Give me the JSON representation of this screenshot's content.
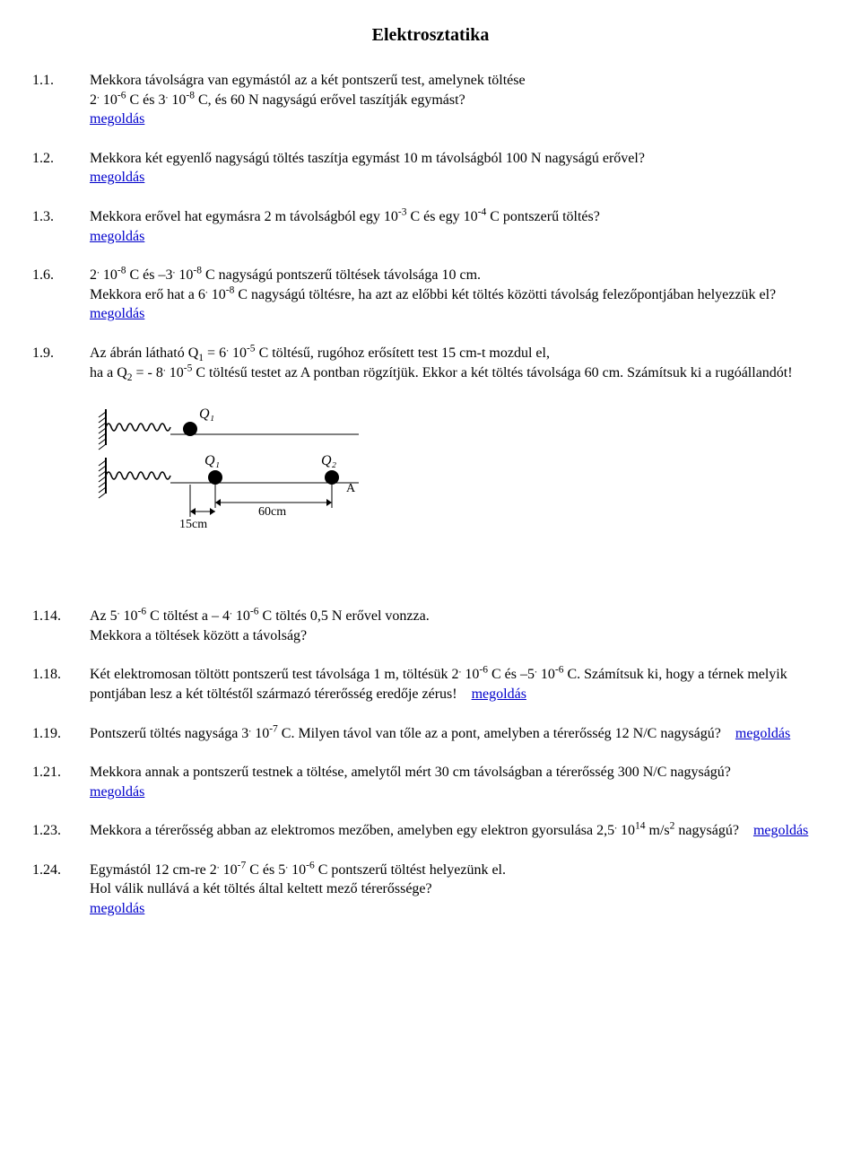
{
  "title": "Elektrosztatika",
  "solution_label": "megoldás",
  "link_color": "#0000cc",
  "items": [
    {
      "num": "1.1.",
      "text_html": "Mekkora távolságra van egymástól az a két pontszerű test, amelynek töltése<br>2<sup>.</sup> 10<sup>-6</sup>  C és 3<sup>.</sup> 10<sup>-8</sup> C, és 60 N nagyságú erővel taszítják egymást?",
      "solution_after": true
    },
    {
      "num": "1.2.",
      "text_html": "Mekkora két egyenlő nagyságú töltés taszítja egymást 10 m távolságból 100 N nagyságú erővel?",
      "solution_after": true
    },
    {
      "num": "1.3.",
      "text_html": "Mekkora erővel hat egymásra 2 m távolságból egy 10<sup>-3</sup> C és egy 10<sup>-4</sup> C pontszerű töltés?",
      "solution_after": true
    },
    {
      "num": "1.6.",
      "text_html": "2<sup>.</sup> 10<sup>-8</sup> C és –3<sup>.</sup> 10<sup>-8</sup> C nagyságú pontszerű töltések távolsága 10 cm.<br>Mekkora erő hat a 6<sup>.</sup> 10<sup>-8</sup> C nagyságú töltésre, ha azt az előbbi két töltés közötti távolság felezőpontjában helyezzük el?",
      "solution_after": true
    },
    {
      "num": "1.9.",
      "text_html": "Az ábrán látható Q<sub>1</sub> = 6<sup>.</sup> 10<sup>-5</sup> C töltésű, rugóhoz erősített test 15 cm-t mozdul el,<br>ha a Q<sub>2</sub> = - 8<sup>.</sup> 10<sup>-5</sup> C töltésű testet az A pontban rögzítjük. Ekkor a két töltés távolsága 60 cm. Számítsuk ki a rugóállandót!",
      "has_figure": true
    },
    {
      "num": "1.14.",
      "text_html": "Az 5<sup>.</sup> 10<sup>-6</sup> C töltést a – 4<sup>.</sup> 10<sup>-6</sup> C töltés 0,5 N erővel vonzza.<br>Mekkora a töltések között a távolság?"
    },
    {
      "num": "1.18.",
      "text_html": "Két elektromosan töltött pontszerű test távolsága 1 m, töltésük 2<sup>.</sup> 10<sup>-6</sup> C és  –5<sup>.</sup> 10<sup>-6</sup> C. Számítsuk ki, hogy a térnek melyik pontjában lesz a két töltéstől származó térerősség eredője zérus!",
      "solution_inline": true
    },
    {
      "num": "1.19.",
      "text_html": "Pontszerű töltés nagysága 3<sup>.</sup> 10<sup>-7</sup> C. Milyen távol van tőle az a pont, amelyben a térerősség 12 N/C nagyságú?",
      "solution_inline": true
    },
    {
      "num": "1.21.",
      "text_html": "Mekkora annak a pontszerű testnek a töltése, amelytől mért 30 cm távolságban a térerősség 300 N/C nagyságú?",
      "solution_after": true
    },
    {
      "num": "1.23.",
      "text_html": "Mekkora a térerősség abban az elektromos mezőben, amelyben egy elektron gyorsulása 2,5<sup>.</sup> 10<sup>14</sup> m/s<sup>2</sup> nagyságú?",
      "solution_inline": true
    },
    {
      "num": "1.24.",
      "text_html": "Egymástól 12 cm-re 2<sup>.</sup> 10<sup>-7</sup> C és 5<sup>.</sup> 10<sup>-6</sup> C pontszerű töltést helyezünk el.<br>Hol válik nullává a két töltés által keltett mező térerőssége?",
      "solution_after": true
    }
  ],
  "figure": {
    "labels": {
      "q1_top": "Q₁",
      "q1_bot": "Q₁",
      "q2": "Q₂",
      "a": "A",
      "d15": "15cm",
      "d60": "60cm"
    },
    "stroke": "#000000"
  }
}
